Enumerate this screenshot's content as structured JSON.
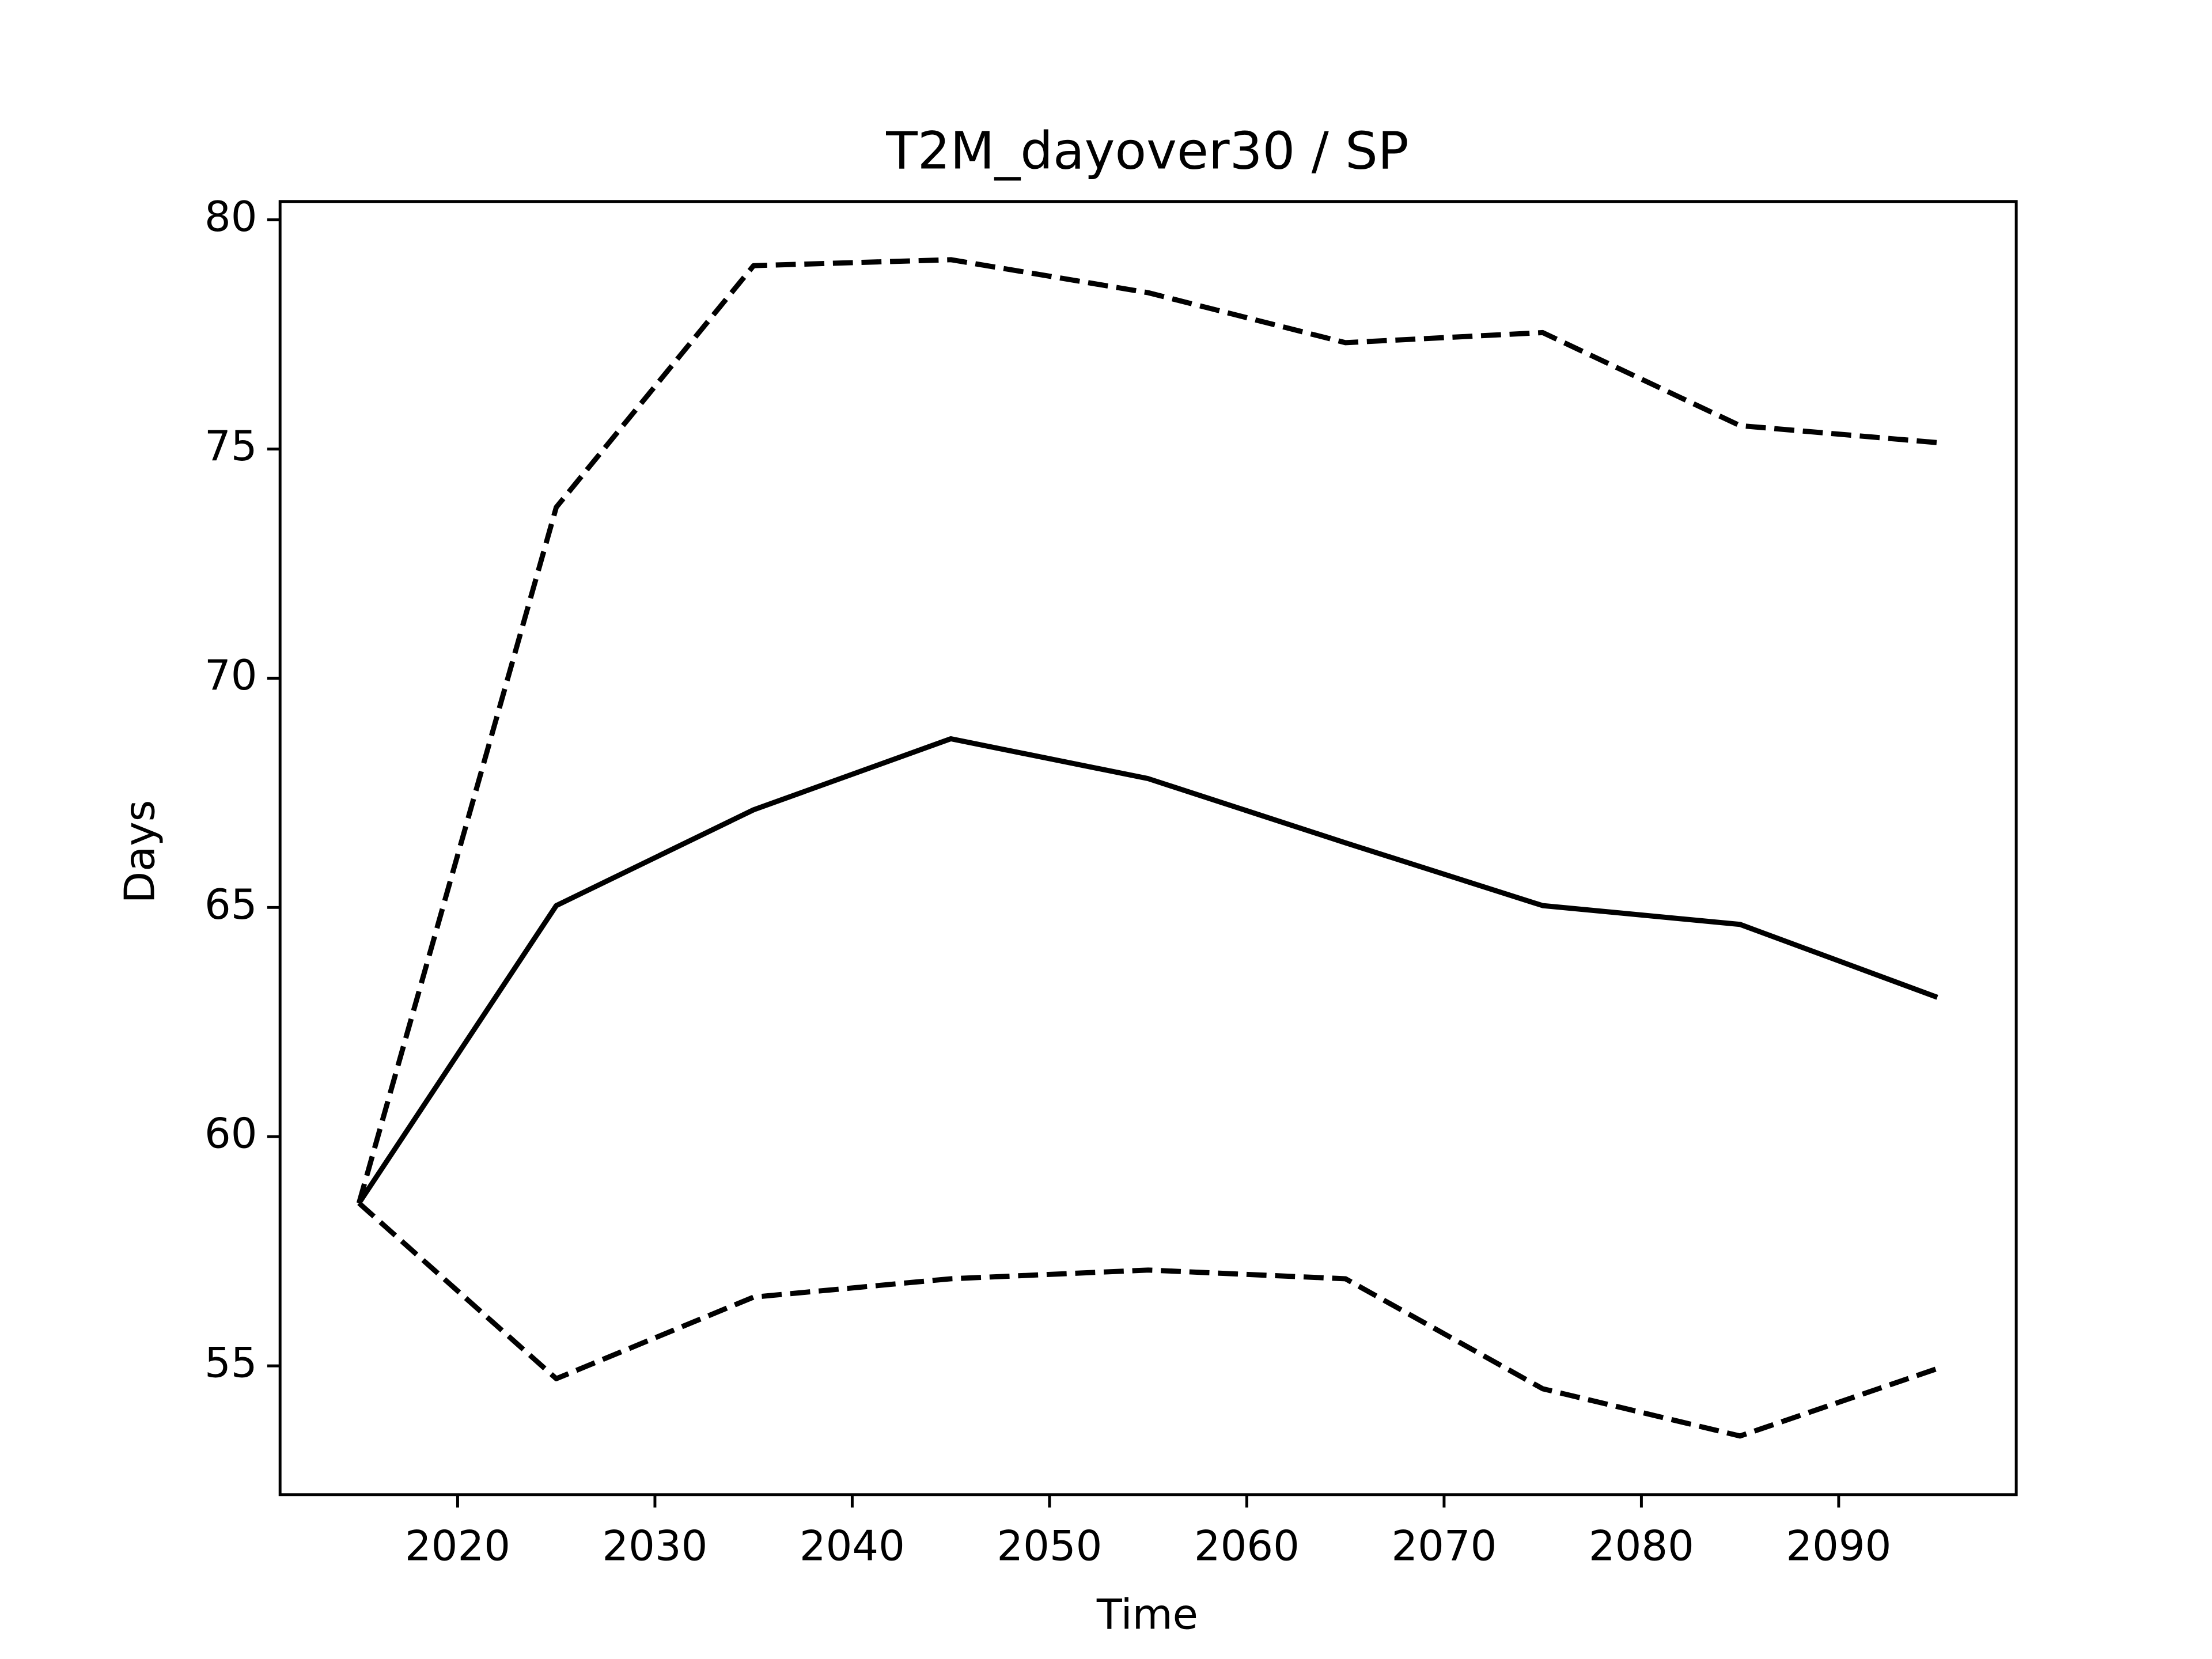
{
  "chart_data": {
    "type": "line",
    "title": "T2M_dayover30 / SP",
    "xlabel": "Time",
    "ylabel": "Days",
    "x": [
      2015,
      2025,
      2035,
      2045,
      2055,
      2065,
      2075,
      2085,
      2095
    ],
    "series": [
      {
        "color": "#000000",
        "dashed": false,
        "values": [
          58.55,
          65.04,
          67.13,
          68.68,
          67.81,
          66.41,
          65.04,
          64.63,
          63.04
        ]
      },
      {
        "color": "#000000",
        "dashed": true,
        "values": [
          58.55,
          73.73,
          79.0,
          79.13,
          78.41,
          77.32,
          77.54,
          75.51,
          75.14
        ]
      },
      {
        "color": "#000000",
        "dashed": true,
        "values": [
          58.55,
          54.72,
          56.5,
          56.9,
          57.09,
          56.9,
          54.5,
          53.47,
          54.94
        ]
      }
    ],
    "xlim": [
      2011,
      2099
    ],
    "xticks": [
      2020,
      2030,
      2040,
      2050,
      2060,
      2070,
      2080,
      2090
    ],
    "ylim": [
      52.19,
      80.4
    ],
    "yticks": [
      55,
      60,
      65,
      70,
      75,
      80
    ],
    "grid": false
  }
}
